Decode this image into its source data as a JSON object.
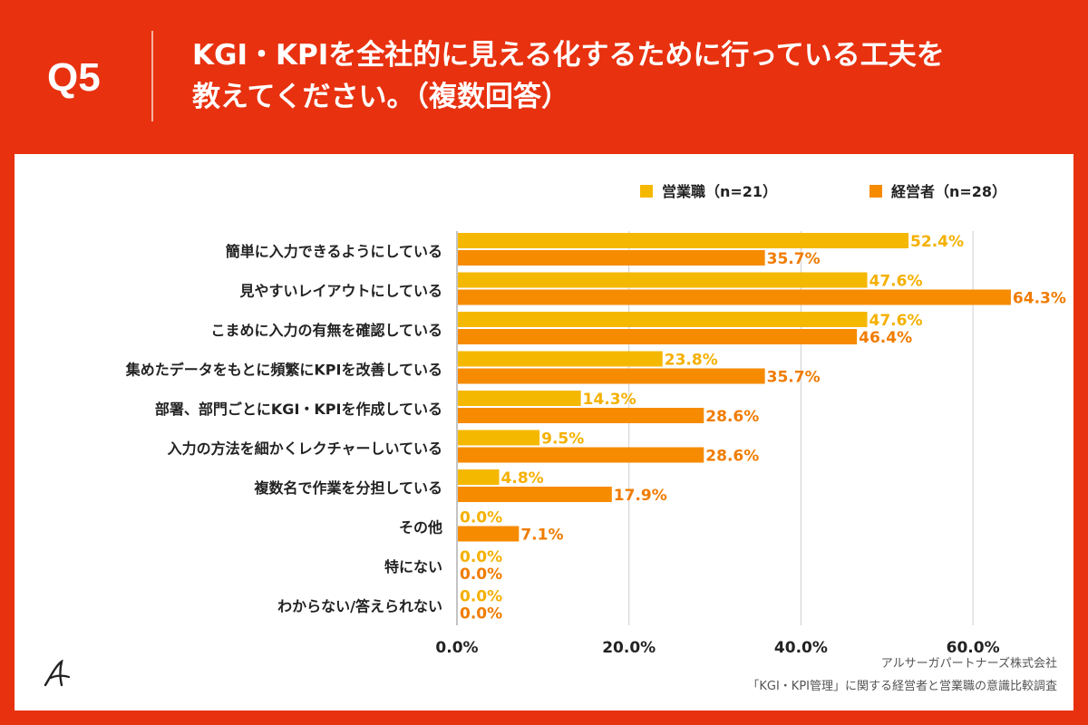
{
  "header": {
    "question_label": "Q5",
    "title_line1": "KGI・KPIを全社的に見える化するために行っている工夫を",
    "title_line2": "教えてください。（複数回答）"
  },
  "colors": {
    "background": "#e8310f",
    "series1": "#f5b800",
    "series2": "#f68b00",
    "label1": "#f5b000",
    "label2": "#f07c00"
  },
  "footer": {
    "company": "アルサーガパートナーズ株式会社",
    "survey": "「KGI・KPI管理」に関する経営者と営業職の意識比較調査"
  },
  "chart_data": {
    "type": "bar",
    "orientation": "horizontal",
    "title": "KGI・KPIを全社的に見える化するために行っている工夫を教えてください。（複数回答）",
    "categories": [
      "簡単に入力できるようにしている",
      "見やすいレイアウトにしている",
      "こまめに入力の有無を確認している",
      "集めたデータをもとに頻繁にKPIを改善している",
      "部署、部門ごとにKGI・KPIを作成している",
      "入力の方法を細かくレクチャーしいている",
      "複数名で作業を分担している",
      "その他",
      "特にない",
      "わからない/答えられない"
    ],
    "series": [
      {
        "name": "営業職（n=21）",
        "values": [
          52.4,
          47.6,
          47.6,
          23.8,
          14.3,
          9.5,
          4.8,
          0.0,
          0.0,
          0.0
        ],
        "labels": [
          "52.4%",
          "47.6%",
          "47.6%",
          "23.8%",
          "14.3%",
          "9.5%",
          "4.8%",
          "0.0%",
          "0.0%",
          "0.0%"
        ]
      },
      {
        "name": "経営者（n=28）",
        "values": [
          35.7,
          64.3,
          46.4,
          35.7,
          28.6,
          28.6,
          17.9,
          7.1,
          0.0,
          0.0
        ],
        "labels": [
          "35.7%",
          "64.3%",
          "46.4%",
          "35.7%",
          "28.6%",
          "28.6%",
          "17.9%",
          "7.1%",
          "0.0%",
          "0.0%"
        ]
      }
    ],
    "xlim": [
      0,
      70
    ],
    "xticks": [
      0,
      20,
      40,
      60
    ],
    "xtick_labels": [
      "0.0%",
      "20.0%",
      "40.0%",
      "60.0%"
    ],
    "legend_position": "top-right",
    "grid": true
  }
}
